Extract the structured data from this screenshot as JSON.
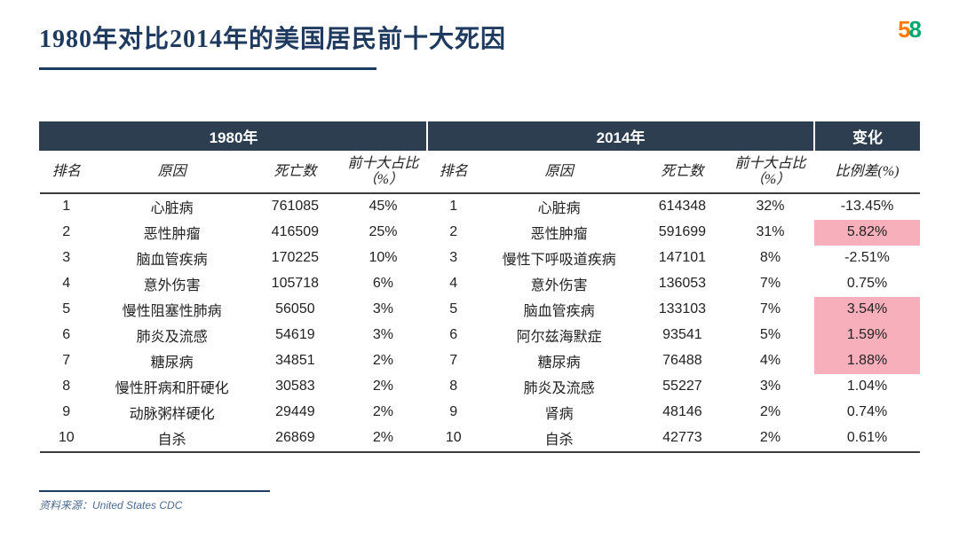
{
  "title": "1980年对比2014年的美国居民前十大死因",
  "logo": {
    "d5": "5",
    "d8": "8"
  },
  "sections": {
    "y1980": "1980年",
    "y2014": "2014年",
    "change": "变化"
  },
  "subheaders": {
    "rank": "排名",
    "cause": "原因",
    "deaths": "死亡数",
    "pct": "前十大占比（%）",
    "diff": "比例差(%)"
  },
  "highlight_color": "#f7b0bb",
  "header_bg": "#2c3e50",
  "rows": [
    {
      "rank1": "1",
      "cause1": "心脏病",
      "deaths1": "761085",
      "pct1": "45%",
      "rank2": "1",
      "cause2": "心脏病",
      "deaths2": "614348",
      "pct2": "32%",
      "diff": "-13.45%",
      "hl": false
    },
    {
      "rank1": "2",
      "cause1": "恶性肿瘤",
      "deaths1": "416509",
      "pct1": "25%",
      "rank2": "2",
      "cause2": "恶性肿瘤",
      "deaths2": "591699",
      "pct2": "31%",
      "diff": "5.82%",
      "hl": true
    },
    {
      "rank1": "3",
      "cause1": "脑血管疾病",
      "deaths1": "170225",
      "pct1": "10%",
      "rank2": "3",
      "cause2": "慢性下呼吸道疾病",
      "deaths2": "147101",
      "pct2": "8%",
      "diff": "-2.51%",
      "hl": false
    },
    {
      "rank1": "4",
      "cause1": "意外伤害",
      "deaths1": "105718",
      "pct1": "6%",
      "rank2": "4",
      "cause2": "意外伤害",
      "deaths2": "136053",
      "pct2": "7%",
      "diff": "0.75%",
      "hl": false
    },
    {
      "rank1": "5",
      "cause1": "慢性阻塞性肺病",
      "deaths1": "56050",
      "pct1": "3%",
      "rank2": "5",
      "cause2": "脑血管疾病",
      "deaths2": "133103",
      "pct2": "7%",
      "diff": "3.54%",
      "hl": true
    },
    {
      "rank1": "6",
      "cause1": "肺炎及流感",
      "deaths1": "54619",
      "pct1": "3%",
      "rank2": "6",
      "cause2": "阿尔兹海默症",
      "deaths2": "93541",
      "pct2": "5%",
      "diff": "1.59%",
      "hl": true
    },
    {
      "rank1": "7",
      "cause1": "糖尿病",
      "deaths1": "34851",
      "pct1": "2%",
      "rank2": "7",
      "cause2": "糖尿病",
      "deaths2": "76488",
      "pct2": "4%",
      "diff": "1.88%",
      "hl": true
    },
    {
      "rank1": "8",
      "cause1": "慢性肝病和肝硬化",
      "deaths1": "30583",
      "pct1": "2%",
      "rank2": "8",
      "cause2": "肺炎及流感",
      "deaths2": "55227",
      "pct2": "3%",
      "diff": "1.04%",
      "hl": false
    },
    {
      "rank1": "9",
      "cause1": "动脉粥样硬化",
      "deaths1": "29449",
      "pct1": "2%",
      "rank2": "9",
      "cause2": "肾病",
      "deaths2": "48146",
      "pct2": "2%",
      "diff": "0.74%",
      "hl": false
    },
    {
      "rank1": "10",
      "cause1": "自杀",
      "deaths1": "26869",
      "pct1": "2%",
      "rank2": "10",
      "cause2": "自杀",
      "deaths2": "42773",
      "pct2": "2%",
      "diff": "0.61%",
      "hl": false
    }
  ],
  "source": "资料来源：United States CDC"
}
